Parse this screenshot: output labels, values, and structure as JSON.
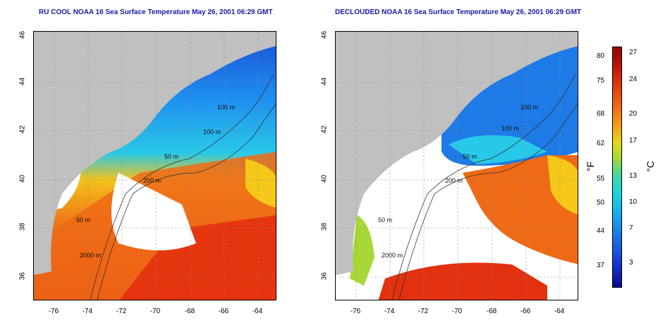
{
  "titles": {
    "left": "RU COOL NOAA 16 Sea Surface Temperature May 26, 2001 06:29 GMT",
    "right": "DECLOUDED NOAA 16 Sea Surface Temperature May 26, 2001 06:29 GMT"
  },
  "axes": {
    "latitude_labels": [
      "46",
      "44",
      "42",
      "40",
      "38",
      "36"
    ],
    "longitude_labels": [
      "-76",
      "-74",
      "-72",
      "-70",
      "-68",
      "-66",
      "-64"
    ]
  },
  "contour_labels": [
    "100 m",
    "100 m",
    "50 m",
    "200 m",
    "50 m",
    "2000 m"
  ],
  "colorbar": {
    "fahrenheit_unit": "°F",
    "celsius_unit": "°C",
    "fahrenheit_ticks": [
      "80",
      "75",
      "68",
      "62",
      "55",
      "50",
      "44",
      "37"
    ],
    "celsius_ticks": [
      "27",
      "24",
      "20",
      "17",
      "13",
      "10",
      "7",
      "3"
    ]
  },
  "colors": {
    "land": "#c0c0c0",
    "cloud": "#ffffff",
    "title": "#1a1aa6"
  }
}
